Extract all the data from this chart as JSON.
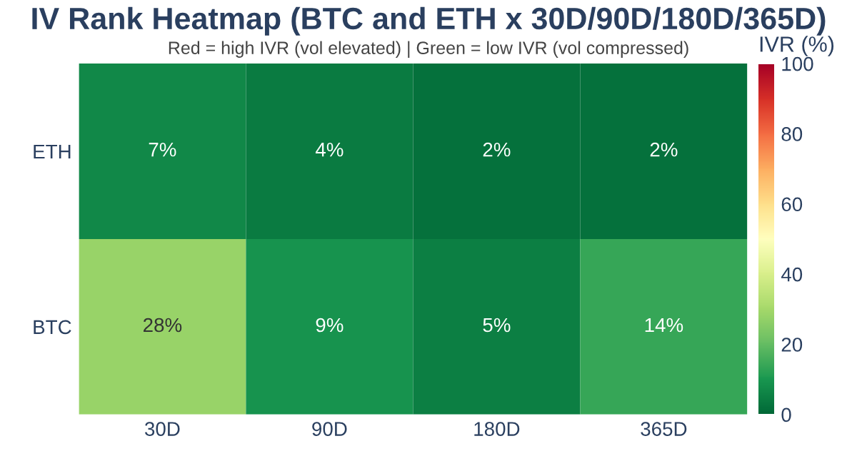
{
  "chart_data": {
    "type": "heatmap",
    "title": "IV Rank Heatmap (BTC and ETH x 30D/90D/180D/365D)",
    "subtitle": "Red = high IVR (vol elevated) | Green = low IVR (vol compressed)",
    "clabel": "IVR (%)",
    "categories": [
      "30D",
      "90D",
      "180D",
      "365D"
    ],
    "y_categories": [
      "ETH",
      "BTC"
    ],
    "cells": [
      [
        7,
        4,
        2,
        2
      ],
      [
        28,
        9,
        5,
        14
      ]
    ],
    "cell_labels": [
      [
        "7%",
        "4%",
        "2%",
        "2%"
      ],
      [
        "28%",
        "9%",
        "5%",
        "14%"
      ]
    ],
    "clim": [
      0,
      100
    ],
    "cticks": [
      0,
      20,
      40,
      60,
      80,
      100
    ]
  }
}
